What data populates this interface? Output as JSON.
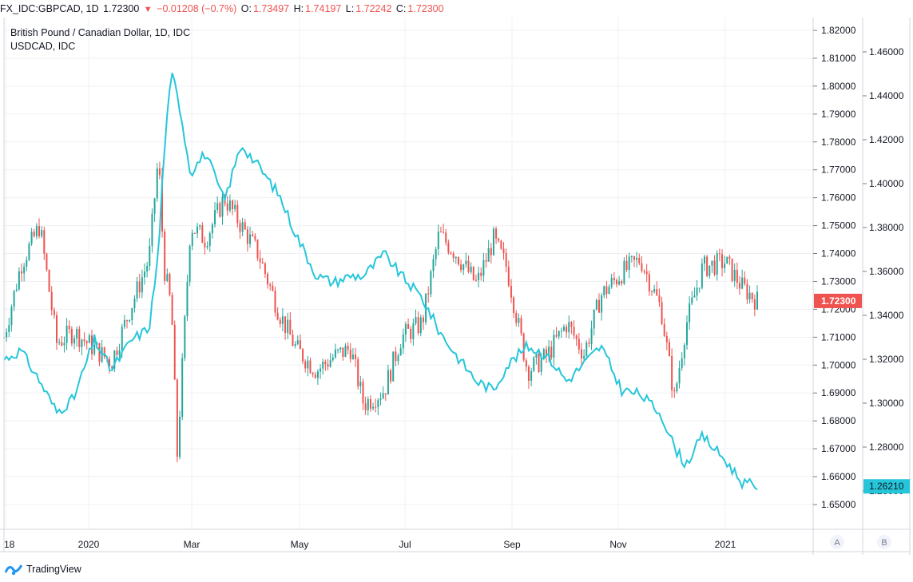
{
  "header": {
    "symbol_interval": "FX_IDC:GBPCAD, 1D",
    "last": "1.72300",
    "down_arrow": "▼",
    "change": "−0.01208 (−0.7%)",
    "o_label": "O:",
    "o_val": "1.73497",
    "h_label": "H:",
    "h_val": "1.74197",
    "l_label": "L:",
    "l_val": "1.72242",
    "c_label": "C:",
    "c_val": "1.72300"
  },
  "legend": {
    "main": "British Pound / Canadian Dollar, 1D, IDC",
    "compare": "USDCAD, IDC"
  },
  "scale_buttons": {
    "a": "A",
    "b": "B"
  },
  "brand": "TradingView",
  "colors": {
    "up": "#26a69a",
    "down": "#ef5350",
    "compare": "#26c6da",
    "grid": "#eef0f3"
  },
  "chart_data": {
    "type": "line",
    "title": "British Pound / Canadian Dollar, 1D, IDC",
    "x_ticks": [
      "18",
      "2020",
      "Mar",
      "May",
      "Jul",
      "Sep",
      "Nov",
      "2021"
    ],
    "y_axis_a": {
      "ticks": [
        1.82,
        1.81,
        1.8,
        1.79,
        1.78,
        1.77,
        1.76,
        1.75,
        1.74,
        1.73,
        1.72,
        1.71,
        1.7,
        1.69,
        1.68,
        1.67,
        1.66,
        1.65
      ],
      "range": [
        1.646,
        1.826
      ],
      "last_label": "1.72300"
    },
    "y_axis_b": {
      "ticks": [
        1.46,
        1.44,
        1.42,
        1.4,
        1.38,
        1.36,
        1.34,
        1.32,
        1.3,
        1.28,
        1.26
      ],
      "range": [
        1.25,
        1.482
      ],
      "last_label": "1.26210"
    },
    "grid": true,
    "series": [
      {
        "name": "British Pound / Canadian Dollar, 1D, IDC",
        "kind": "candlestick",
        "x": [
          "2019-12-18",
          "2019-12-27",
          "2020-01-06",
          "2020-01-15",
          "2020-01-24",
          "2020-02-04",
          "2020-02-13",
          "2020-02-24",
          "2020-03-04",
          "2020-03-09",
          "2020-03-12",
          "2020-03-16",
          "2020-03-19",
          "2020-03-26",
          "2020-04-03",
          "2020-04-13",
          "2020-04-22",
          "2020-05-01",
          "2020-05-12",
          "2020-05-21",
          "2020-06-01",
          "2020-06-10",
          "2020-06-19",
          "2020-06-26",
          "2020-07-07",
          "2020-07-16",
          "2020-07-27",
          "2020-08-05",
          "2020-08-14",
          "2020-08-25",
          "2020-09-03",
          "2020-09-10",
          "2020-09-21",
          "2020-10-01",
          "2020-10-12",
          "2020-10-21",
          "2020-10-30",
          "2020-11-10",
          "2020-11-20",
          "2020-12-01",
          "2020-12-08",
          "2020-12-14",
          "2020-12-23",
          "2021-01-04",
          "2021-01-13",
          "2021-01-21"
        ],
        "values": [
          1.71,
          1.736,
          1.75,
          1.708,
          1.712,
          1.706,
          1.701,
          1.722,
          1.738,
          1.775,
          1.735,
          1.72,
          1.668,
          1.75,
          1.745,
          1.76,
          1.75,
          1.74,
          1.719,
          1.706,
          1.698,
          1.703,
          1.706,
          1.686,
          1.691,
          1.71,
          1.715,
          1.747,
          1.74,
          1.729,
          1.745,
          1.735,
          1.698,
          1.703,
          1.715,
          1.704,
          1.725,
          1.733,
          1.738,
          1.72,
          1.688,
          1.714,
          1.735,
          1.737,
          1.728,
          1.723
        ]
      },
      {
        "name": "USDCAD, IDC",
        "kind": "line",
        "x": [
          "2019-12-18",
          "2019-12-27",
          "2020-01-06",
          "2020-01-15",
          "2020-01-24",
          "2020-02-04",
          "2020-02-13",
          "2020-02-24",
          "2020-03-04",
          "2020-03-09",
          "2020-03-12",
          "2020-03-16",
          "2020-03-19",
          "2020-03-26",
          "2020-04-03",
          "2020-04-13",
          "2020-04-22",
          "2020-05-01",
          "2020-05-12",
          "2020-05-21",
          "2020-06-01",
          "2020-06-10",
          "2020-06-19",
          "2020-06-26",
          "2020-07-07",
          "2020-07-16",
          "2020-07-27",
          "2020-08-05",
          "2020-08-14",
          "2020-08-25",
          "2020-09-03",
          "2020-09-10",
          "2020-09-21",
          "2020-10-01",
          "2020-10-12",
          "2020-10-21",
          "2020-10-30",
          "2020-11-10",
          "2020-11-20",
          "2020-12-01",
          "2020-12-08",
          "2020-12-14",
          "2020-12-23",
          "2021-01-04",
          "2021-01-13",
          "2021-01-21"
        ],
        "values": [
          1.32,
          1.324,
          1.31,
          1.296,
          1.302,
          1.329,
          1.315,
          1.329,
          1.334,
          1.368,
          1.415,
          1.45,
          1.442,
          1.405,
          1.414,
          1.392,
          1.418,
          1.408,
          1.395,
          1.377,
          1.358,
          1.355,
          1.358,
          1.358,
          1.368,
          1.358,
          1.348,
          1.333,
          1.322,
          1.31,
          1.306,
          1.317,
          1.326,
          1.322,
          1.31,
          1.318,
          1.326,
          1.306,
          1.304,
          1.295,
          1.28,
          1.272,
          1.285,
          1.274,
          1.264,
          1.262
        ]
      }
    ]
  }
}
